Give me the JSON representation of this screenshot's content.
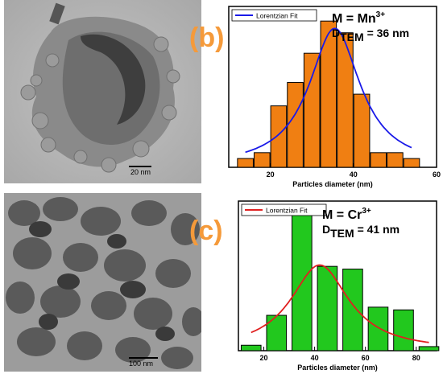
{
  "panels": [
    {
      "label": "(b)",
      "tem_scale": "20 nm",
      "chart_data": {
        "type": "bar",
        "annotation_main": "M = Mn",
        "annotation_sup": "3+",
        "annotation_sub_prefix": "D",
        "annotation_sub": "TEM",
        "annotation_value": " = 36 nm",
        "legend": "Lorentzian Fit",
        "xlabel": "Particles diameter (nm)",
        "xlim": [
          10,
          60
        ],
        "ylim": [
          0,
          1.1
        ],
        "xticks": [
          20,
          40,
          60
        ],
        "bar_width": 3.8,
        "x": [
          14,
          18,
          22,
          26,
          30,
          34,
          38,
          42,
          46,
          50,
          54
        ],
        "values": [
          0.06,
          0.1,
          0.42,
          0.58,
          0.78,
          1.0,
          0.92,
          0.5,
          0.1,
          0.1,
          0.06
        ],
        "bar_color": "#f07f12",
        "fit": {
          "color": "#1a1ae8",
          "center": 35.5,
          "width": 7.5,
          "amplitude": 0.95
        }
      }
    },
    {
      "label": "(c)",
      "tem_scale": "100 nm",
      "chart_data": {
        "type": "bar",
        "annotation_main": "M = Cr",
        "annotation_sup": "3+",
        "annotation_sub_prefix": "D",
        "annotation_sub": "TEM",
        "annotation_value": " = 41 nm",
        "legend": "Lorentzian Fit",
        "xlabel": "Particles diameter (nm)",
        "xlim": [
          10,
          88
        ],
        "ylim": [
          0,
          1.1
        ],
        "xticks": [
          20,
          40,
          60,
          80
        ],
        "bar_width": 7.8,
        "x": [
          15,
          25,
          35,
          45,
          55,
          65,
          75,
          85
        ],
        "values": [
          0.04,
          0.26,
          1.0,
          0.62,
          0.6,
          0.32,
          0.3,
          0.03
        ],
        "bar_color": "#22c81e",
        "fit": {
          "color": "#e02020",
          "center": 42,
          "width": 14,
          "amplitude": 0.63
        }
      }
    }
  ]
}
